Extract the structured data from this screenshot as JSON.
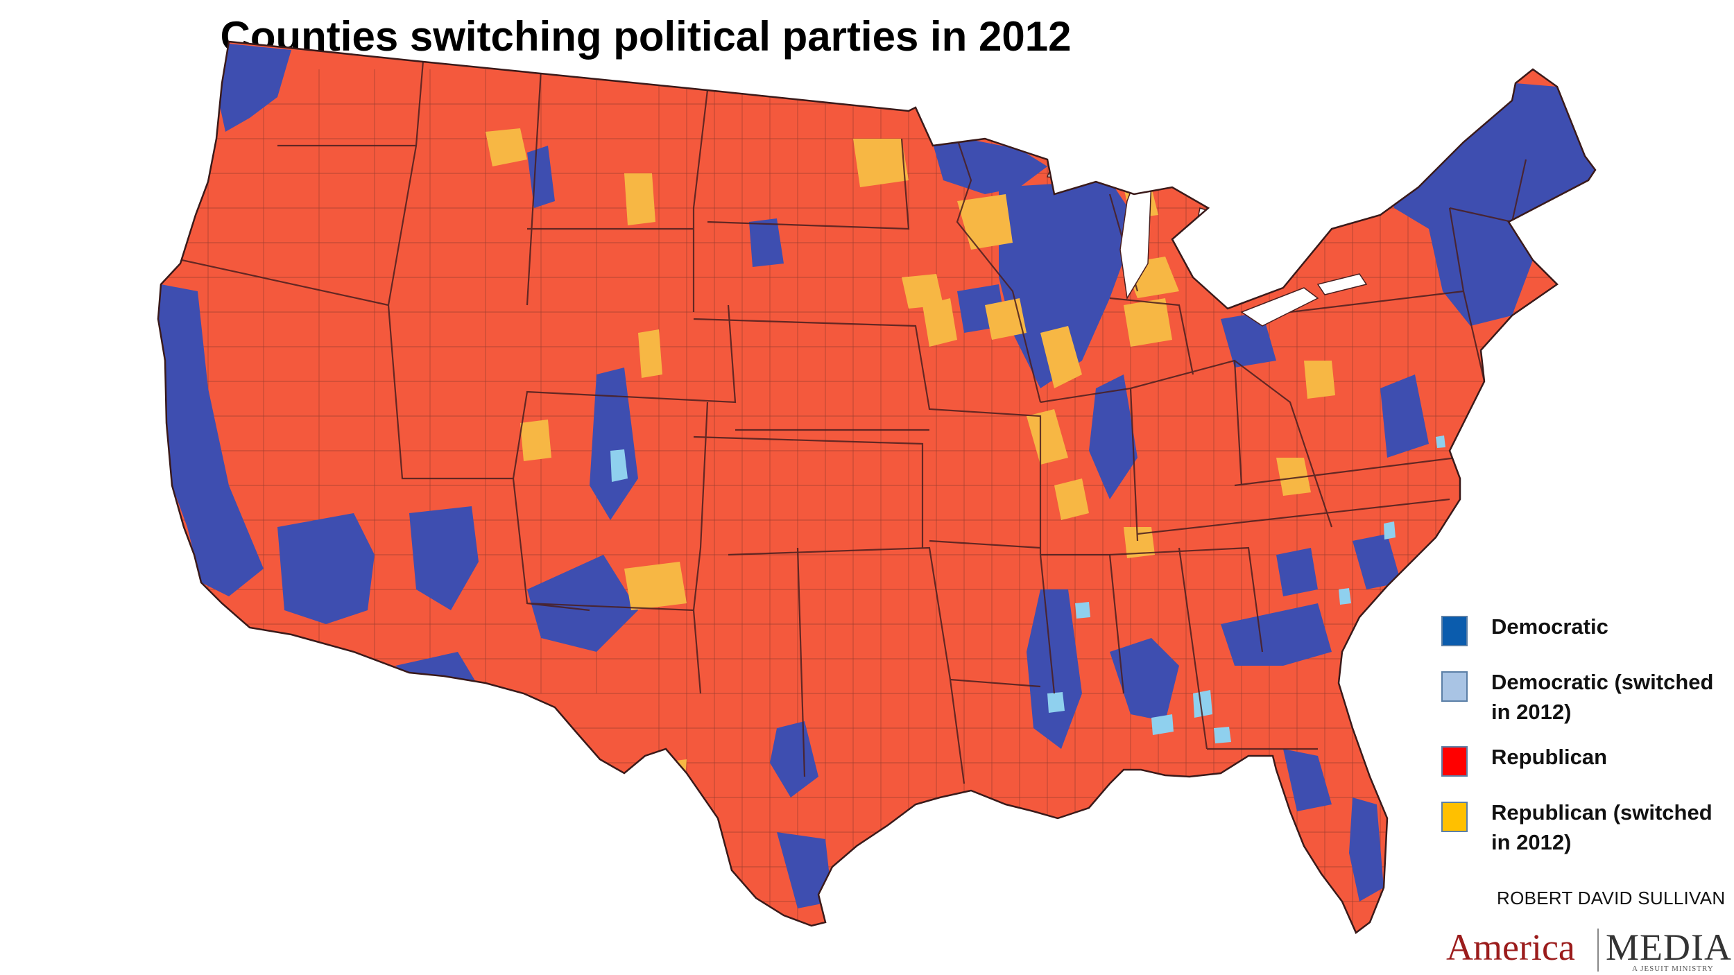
{
  "title": "Counties switching political parties in 2012",
  "legend": [
    {
      "label": "Democratic",
      "color": "#0b5cad",
      "category": "dem"
    },
    {
      "label": "Democratic (switched in 2012)",
      "color": "#a9c4e4",
      "category": "dem_switched"
    },
    {
      "label": "Republican",
      "color": "#ff0000",
      "category": "rep"
    },
    {
      "label": "Republican (switched in 2012)",
      "color": "#ffc000",
      "category": "rep_switched"
    }
  ],
  "map_colors": {
    "dem": "#3e4eb0",
    "dem_switched": "#8fd0ee",
    "rep": "#f4593d",
    "rep_switched": "#f7b744",
    "border": "#4a1f1f"
  },
  "credit": "ROBERT DAVID SULLIVAN",
  "logo": {
    "america": "America",
    "media": "MEDIA",
    "tagline": "A JESUIT MINISTRY"
  }
}
